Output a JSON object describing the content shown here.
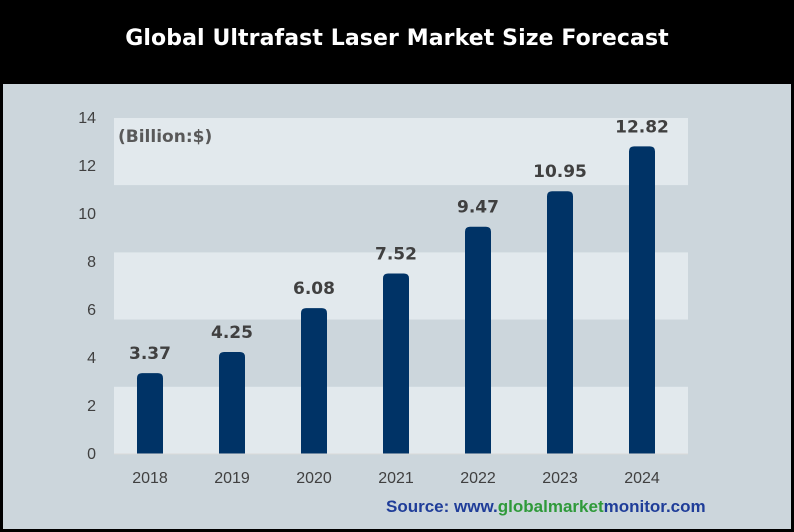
{
  "title": "Global Ultrafast Laser Market Size Forecast",
  "source": {
    "prefix": "Source: www.",
    "part1": "global",
    "part2": "market",
    "part3": "monitor",
    "suffix": ".com"
  },
  "colors": {
    "bar": "#003366",
    "band_light": "#e2e9ed",
    "band_dark": "#ccd6dc",
    "source_blue": "#1f3d99",
    "source_green": "#2f9a3a"
  },
  "chart_data": {
    "type": "bar",
    "title": "Global Ultrafast Laser Market Size Forecast",
    "unit_label": "(Billion:$)",
    "categories": [
      "2018",
      "2019",
      "2020",
      "2021",
      "2022",
      "2023",
      "2024"
    ],
    "values": [
      3.37,
      4.25,
      6.08,
      7.52,
      9.47,
      10.95,
      12.82
    ],
    "value_labels": [
      "3.37",
      "4.25",
      "6.08",
      "7.52",
      "9.47",
      "10.95",
      "12.82"
    ],
    "yticks": [
      "0",
      "2",
      "4",
      "6",
      "8",
      "10",
      "12",
      "14"
    ],
    "ylim": [
      0,
      14
    ],
    "grid": "alternating horizontal bands",
    "legend": "none"
  }
}
